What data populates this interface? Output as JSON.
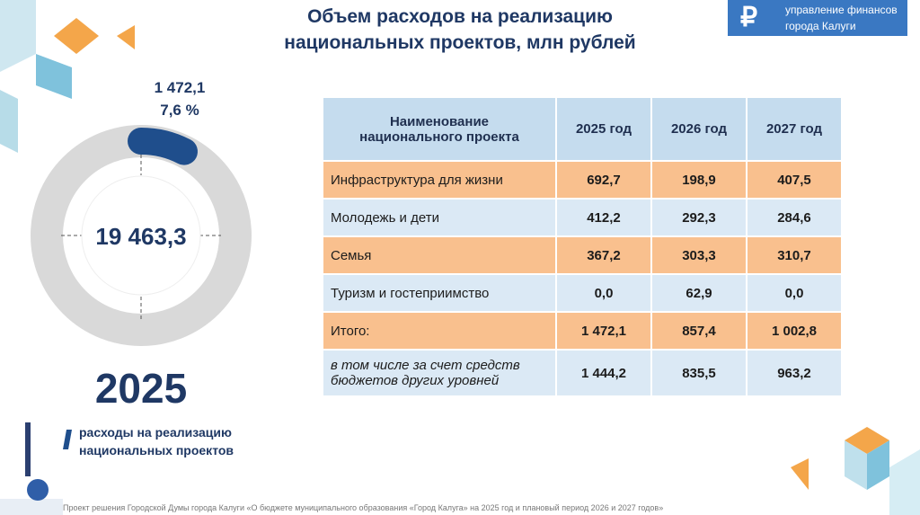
{
  "header": {
    "title": [
      "Объем расходов на реализацию",
      "национальных проектов, млн рублей"
    ],
    "logo": [
      "управление финансов",
      "города Калуги"
    ]
  },
  "donut": {
    "segment_value": "1 472,1",
    "segment_percent": "7,6 %",
    "center": "19 463,3",
    "year": "2025",
    "legend": [
      "расходы на реализацию",
      "национальных проектов"
    ]
  },
  "table": {
    "header": [
      "Наименование национального проекта",
      "2025 год",
      "2026 год",
      "2027 год"
    ],
    "rows": [
      [
        "Инфраструктура для жизни",
        "692,7",
        "198,9",
        "407,5"
      ],
      [
        "Молодежь и дети",
        "412,2",
        "292,3",
        "284,6"
      ],
      [
        "Семья",
        "367,2",
        "303,3",
        "310,7"
      ],
      [
        "Туризм и гостеприимство",
        "0,0",
        "62,9",
        "0,0"
      ],
      [
        "Итого:",
        "1 472,1",
        "857,4",
        "1 002,8"
      ],
      [
        "в том числе за счет средств бюджетов других уровней",
        "1 444,2",
        "835,5",
        "963,2"
      ]
    ]
  },
  "footer": "Проект решения Городской Думы города Калуги «О бюджете муниципального образования «Город Калуга» на 2025 год и плановый период 2026 и 2027 годов»"
}
